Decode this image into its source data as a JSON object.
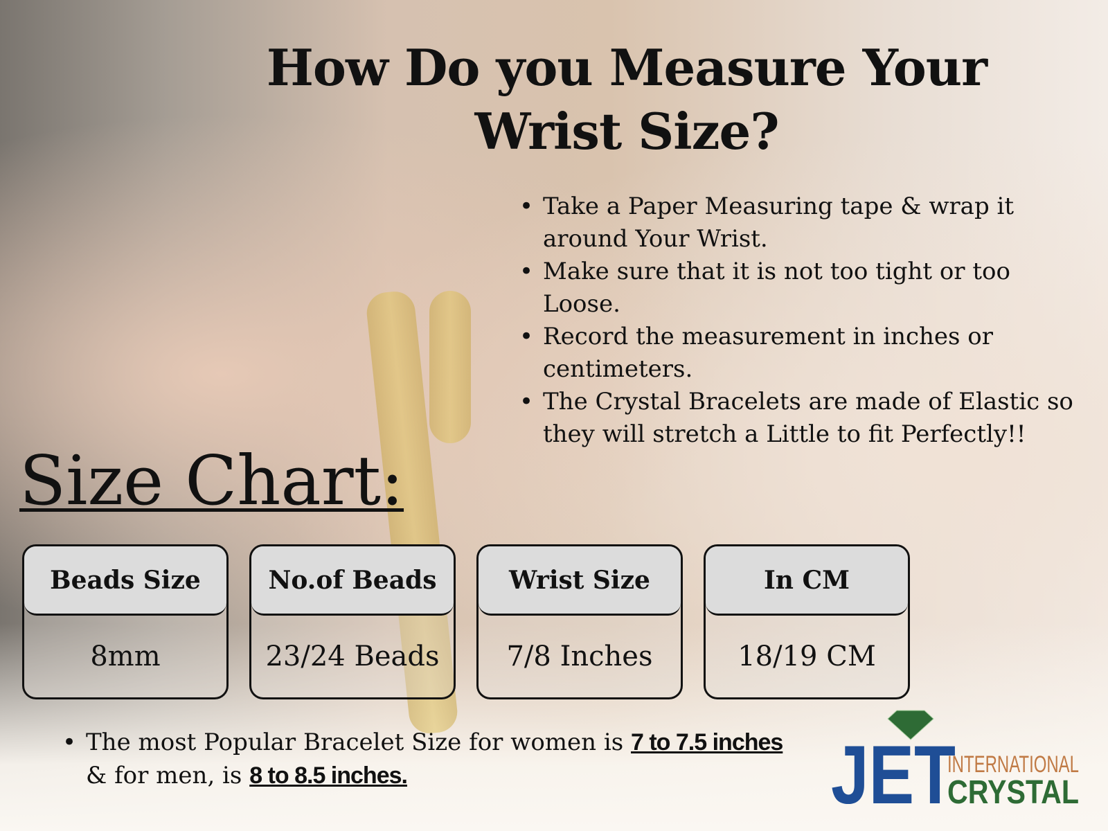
{
  "title": [
    "How Do you Measure Your",
    "Wrist Size?"
  ],
  "steps": [
    "Take a Paper Measuring tape & wrap it around Your Wrist.",
    "Make sure that it is not too tight or too Loose.",
    "Record the measurement in inches or centimeters.",
    "The Crystal Bracelets are made of Elastic so they will stretch a Little to fit Perfectly!!"
  ],
  "size_chart": {
    "heading": "Size Chart:",
    "columns": [
      {
        "header": "Beads Size",
        "value": "8mm"
      },
      {
        "header": "No.of Beads",
        "value": "23/24 Beads"
      },
      {
        "header": "Wrist Size",
        "value": "7/8 Inches"
      },
      {
        "header": "In CM",
        "value": "18/19 CM"
      }
    ]
  },
  "note": {
    "text1": "The most Popular Bracelet Size for women is ",
    "women": "7 to 7.5 inches",
    "text2": "& for men, is ",
    "men": "8 to 8.5 inches."
  },
  "logo": {
    "mark": "JET",
    "line1": "INTERNATIONAL",
    "line2": "CRYSTAL",
    "blue": "#1f4e96",
    "orange": "#c07a45",
    "green": "#2e6b35"
  }
}
